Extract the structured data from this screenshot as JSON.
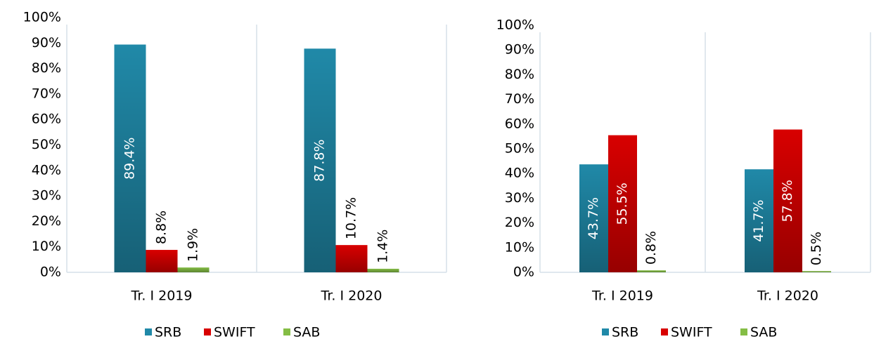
{
  "chart_data": [
    {
      "type": "bar",
      "categories": [
        "Tr. I 2019",
        "Tr. I 2020"
      ],
      "series": [
        {
          "name": "SRB",
          "color": "#2089a8",
          "values": [
            89.4,
            87.8
          ],
          "value_labels": [
            "89.4%",
            "87.8%"
          ]
        },
        {
          "name": "SWIFT",
          "color": "#d80000",
          "values": [
            8.8,
            10.7
          ],
          "value_labels": [
            "8.8%",
            "10.7%"
          ]
        },
        {
          "name": "SAB",
          "color": "#84bd45",
          "values": [
            1.9,
            1.4
          ],
          "value_labels": [
            "1.9%",
            "1.4%"
          ]
        }
      ],
      "ylim": [
        0,
        100
      ],
      "yticks": [
        {
          "value": 0,
          "label": "0%"
        },
        {
          "value": 10,
          "label": "10%"
        },
        {
          "value": 20,
          "label": "20%"
        },
        {
          "value": 30,
          "label": "30%"
        },
        {
          "value": 40,
          "label": "40%"
        },
        {
          "value": 50,
          "label": "50%"
        },
        {
          "value": 60,
          "label": "60%"
        },
        {
          "value": 70,
          "label": "70%"
        },
        {
          "value": 80,
          "label": "80%"
        },
        {
          "value": 90,
          "label": "90%"
        },
        {
          "value": 100,
          "label": "100%"
        }
      ],
      "legend": "bottom"
    },
    {
      "type": "bar",
      "categories": [
        "Tr. I 2019",
        "Tr. I 2020"
      ],
      "series": [
        {
          "name": "SRB",
          "color": "#2089a8",
          "values": [
            43.7,
            41.7
          ],
          "value_labels": [
            "43.7%",
            "41.7%"
          ]
        },
        {
          "name": "SWIFT",
          "color": "#d80000",
          "values": [
            55.5,
            57.8
          ],
          "value_labels": [
            "55.5%",
            "57.8%"
          ]
        },
        {
          "name": "SAB",
          "color": "#84bd45",
          "values": [
            0.8,
            0.5
          ],
          "value_labels": [
            "0.8%",
            "0.5%"
          ]
        }
      ],
      "ylim": [
        0,
        100
      ],
      "yticks": [
        {
          "value": 0,
          "label": "0%"
        },
        {
          "value": 10,
          "label": "10%"
        },
        {
          "value": 20,
          "label": "20%"
        },
        {
          "value": 30,
          "label": "30%"
        },
        {
          "value": 40,
          "label": "40%"
        },
        {
          "value": 50,
          "label": "50%"
        },
        {
          "value": 60,
          "label": "60%"
        },
        {
          "value": 70,
          "label": "70%"
        },
        {
          "value": 80,
          "label": "80%"
        },
        {
          "value": 90,
          "label": "90%"
        },
        {
          "value": 100,
          "label": "100%"
        }
      ],
      "legend": "bottom"
    }
  ]
}
